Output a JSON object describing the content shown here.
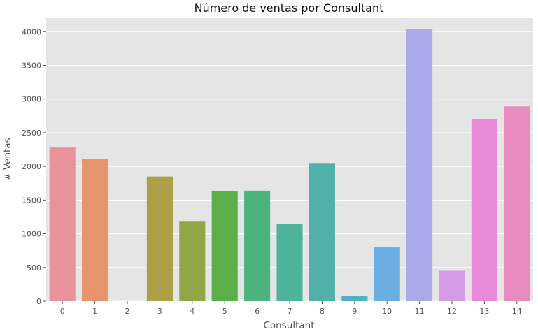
{
  "chart_data": {
    "type": "bar",
    "title": "Número de ventas por Consultant",
    "xlabel": "Consultant",
    "ylabel": "# Ventas",
    "categories": [
      "0",
      "1",
      "2",
      "3",
      "4",
      "5",
      "6",
      "7",
      "8",
      "9",
      "10",
      "11",
      "12",
      "13",
      "14"
    ],
    "values": [
      2280,
      2110,
      0,
      1850,
      1190,
      1630,
      1640,
      1150,
      2050,
      80,
      800,
      4040,
      450,
      2700,
      2890
    ],
    "colors": [
      "#e8939c",
      "#e6946b",
      "#c9a24b",
      "#ad9f47",
      "#91a646",
      "#5caf48",
      "#4cb37f",
      "#4db39b",
      "#4fb1a9",
      "#4fb1c2",
      "#6aaee3",
      "#aaa9ea",
      "#d59be6",
      "#e88ad9",
      "#e88bbd"
    ],
    "ylim": [
      0,
      4200
    ],
    "yticks": [
      0,
      500,
      1000,
      1500,
      2000,
      2500,
      3000,
      3500,
      4000
    ],
    "grid": true,
    "background": "#e5e5e5"
  }
}
